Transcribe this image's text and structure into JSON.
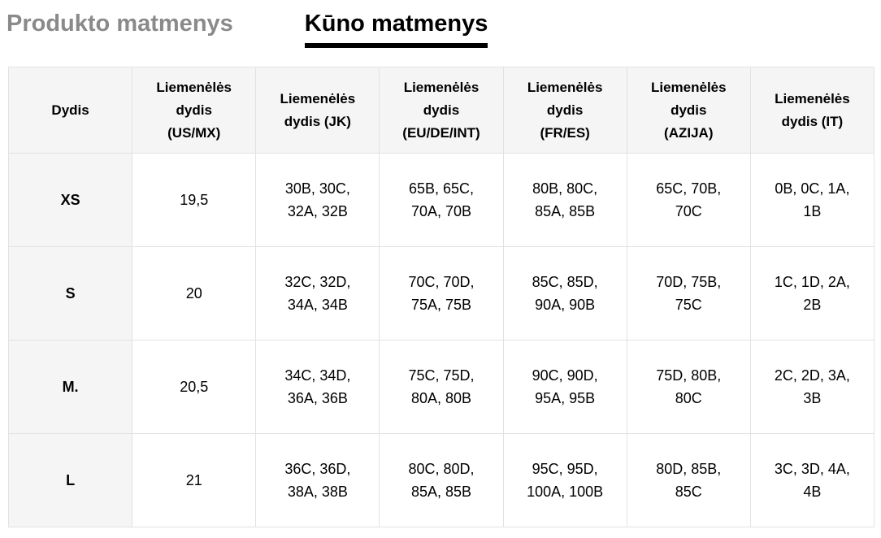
{
  "tabs": {
    "product": {
      "label": "Produkto matmenys",
      "active": false
    },
    "body": {
      "label": "Kūno matmenys",
      "active": true
    }
  },
  "colors": {
    "inactive_tab": "#8a8a8a",
    "active_tab": "#000000",
    "header_bg": "#f5f5f5",
    "border": "#e2e2e2"
  },
  "table": {
    "headers": [
      "Dydis",
      "Liemenėlės\ndydis\n(US/MX)",
      "Liemenėlės\ndydis (JK)",
      "Liemenėlės\ndydis\n(EU/DE/INT)",
      "Liemenėlės\ndydis\n(FR/ES)",
      "Liemenėlės\ndydis\n(AZIJA)",
      "Liemenėlės\ndydis (IT)"
    ],
    "rows": [
      [
        "XS",
        "19,5",
        "30B, 30C,\n32A, 32B",
        "65B, 65C,\n70A, 70B",
        "80B, 80C,\n85A, 85B",
        "65C, 70B,\n70C",
        "0B, 0C, 1A,\n1B"
      ],
      [
        "S",
        "20",
        "32C, 32D,\n34A, 34B",
        "70C, 70D,\n75A, 75B",
        "85C, 85D,\n90A, 90B",
        "70D, 75B,\n75C",
        "1C, 1D, 2A,\n2B"
      ],
      [
        "M.",
        "20,5",
        "34C, 34D,\n36A, 36B",
        "75C, 75D,\n80A, 80B",
        "90C, 90D,\n95A, 95B",
        "75D, 80B,\n80C",
        "2C, 2D, 3A,\n3B"
      ],
      [
        "L",
        "21",
        "36C, 36D,\n38A, 38B",
        "80C, 80D,\n85A, 85B",
        "95C, 95D,\n100A, 100B",
        "80D, 85B,\n85C",
        "3C, 3D, 4A,\n4B"
      ]
    ]
  }
}
